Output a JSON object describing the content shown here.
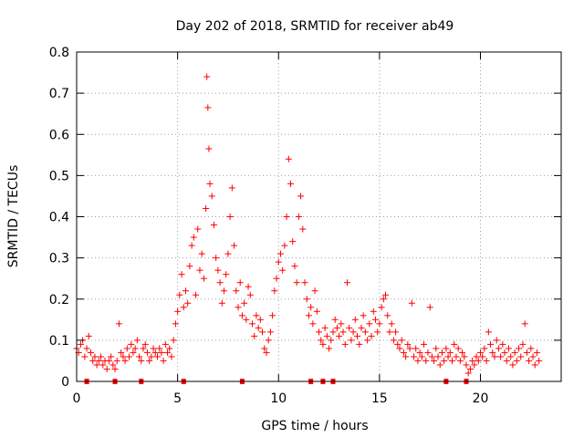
{
  "chart_data": {
    "type": "scatter",
    "title": "Day 202 of 2018, SRMTID for receiver ab49",
    "xlabel": "GPS time / hours",
    "ylabel": "SRMTID / TECUs",
    "xlim": [
      0,
      24
    ],
    "ylim": [
      0,
      0.8
    ],
    "xticks": [
      0,
      5,
      10,
      15,
      20
    ],
    "xtick_labels": [
      "0",
      "5",
      "10",
      "15",
      "20"
    ],
    "yticks": [
      0,
      0.1,
      0.2,
      0.3,
      0.4,
      0.5,
      0.6,
      0.7,
      0.8
    ],
    "ytick_labels": [
      "0",
      "0.1",
      "0.2",
      "0.3",
      "0.4",
      "0.5",
      "0.6",
      "0.7",
      "0.8"
    ],
    "grid": true,
    "marker": "+",
    "color": "#ff0000",
    "series": [
      {
        "name": "SRMTID",
        "points": [
          [
            0.0,
            0.08
          ],
          [
            0.1,
            0.07
          ],
          [
            0.2,
            0.09
          ],
          [
            0.3,
            0.1
          ],
          [
            0.4,
            0.06
          ],
          [
            0.5,
            0.08
          ],
          [
            0.6,
            0.11
          ],
          [
            0.7,
            0.07
          ],
          [
            0.8,
            0.05
          ],
          [
            0.9,
            0.06
          ],
          [
            1.0,
            0.04
          ],
          [
            1.1,
            0.05
          ],
          [
            1.2,
            0.06
          ],
          [
            1.3,
            0.04
          ],
          [
            1.4,
            0.05
          ],
          [
            1.5,
            0.03
          ],
          [
            1.6,
            0.05
          ],
          [
            1.7,
            0.06
          ],
          [
            1.8,
            0.04
          ],
          [
            1.9,
            0.03
          ],
          [
            2.0,
            0.05
          ],
          [
            2.1,
            0.14
          ],
          [
            2.2,
            0.07
          ],
          [
            2.3,
            0.06
          ],
          [
            2.4,
            0.05
          ],
          [
            2.5,
            0.08
          ],
          [
            2.6,
            0.06
          ],
          [
            2.7,
            0.09
          ],
          [
            2.8,
            0.07
          ],
          [
            2.9,
            0.08
          ],
          [
            3.0,
            0.1
          ],
          [
            3.1,
            0.06
          ],
          [
            3.2,
            0.05
          ],
          [
            3.3,
            0.08
          ],
          [
            3.4,
            0.09
          ],
          [
            3.5,
            0.07
          ],
          [
            3.6,
            0.05
          ],
          [
            3.7,
            0.06
          ],
          [
            3.8,
            0.08
          ],
          [
            3.9,
            0.07
          ],
          [
            4.0,
            0.06
          ],
          [
            4.1,
            0.08
          ],
          [
            4.2,
            0.07
          ],
          [
            4.3,
            0.05
          ],
          [
            4.4,
            0.09
          ],
          [
            4.5,
            0.07
          ],
          [
            4.6,
            0.08
          ],
          [
            4.7,
            0.06
          ],
          [
            4.8,
            0.1
          ],
          [
            4.9,
            0.14
          ],
          [
            5.0,
            0.17
          ],
          [
            5.1,
            0.21
          ],
          [
            5.2,
            0.26
          ],
          [
            5.3,
            0.18
          ],
          [
            5.4,
            0.22
          ],
          [
            5.5,
            0.19
          ],
          [
            5.6,
            0.28
          ],
          [
            5.7,
            0.33
          ],
          [
            5.8,
            0.35
          ],
          [
            5.9,
            0.21
          ],
          [
            6.0,
            0.37
          ],
          [
            6.1,
            0.27
          ],
          [
            6.2,
            0.31
          ],
          [
            6.3,
            0.25
          ],
          [
            6.4,
            0.42
          ],
          [
            6.45,
            0.74
          ],
          [
            6.5,
            0.665
          ],
          [
            6.55,
            0.565
          ],
          [
            6.6,
            0.48
          ],
          [
            6.7,
            0.45
          ],
          [
            6.8,
            0.38
          ],
          [
            6.9,
            0.3
          ],
          [
            7.0,
            0.27
          ],
          [
            7.1,
            0.24
          ],
          [
            7.2,
            0.19
          ],
          [
            7.3,
            0.22
          ],
          [
            7.4,
            0.26
          ],
          [
            7.5,
            0.31
          ],
          [
            7.6,
            0.4
          ],
          [
            7.7,
            0.47
          ],
          [
            7.8,
            0.33
          ],
          [
            7.9,
            0.22
          ],
          [
            8.0,
            0.18
          ],
          [
            8.1,
            0.24
          ],
          [
            8.2,
            0.16
          ],
          [
            8.3,
            0.19
          ],
          [
            8.4,
            0.15
          ],
          [
            8.5,
            0.23
          ],
          [
            8.6,
            0.21
          ],
          [
            8.7,
            0.14
          ],
          [
            8.8,
            0.11
          ],
          [
            8.9,
            0.16
          ],
          [
            9.0,
            0.13
          ],
          [
            9.1,
            0.15
          ],
          [
            9.2,
            0.12
          ],
          [
            9.3,
            0.08
          ],
          [
            9.4,
            0.07
          ],
          [
            9.5,
            0.1
          ],
          [
            9.6,
            0.12
          ],
          [
            9.7,
            0.16
          ],
          [
            9.8,
            0.22
          ],
          [
            9.9,
            0.25
          ],
          [
            10.0,
            0.29
          ],
          [
            10.1,
            0.31
          ],
          [
            10.2,
            0.27
          ],
          [
            10.3,
            0.33
          ],
          [
            10.4,
            0.4
          ],
          [
            10.5,
            0.54
          ],
          [
            10.6,
            0.48
          ],
          [
            10.7,
            0.34
          ],
          [
            10.8,
            0.28
          ],
          [
            10.9,
            0.24
          ],
          [
            11.0,
            0.4
          ],
          [
            11.1,
            0.45
          ],
          [
            11.2,
            0.37
          ],
          [
            11.3,
            0.24
          ],
          [
            11.4,
            0.2
          ],
          [
            11.5,
            0.16
          ],
          [
            11.6,
            0.18
          ],
          [
            11.7,
            0.14
          ],
          [
            11.8,
            0.22
          ],
          [
            11.9,
            0.17
          ],
          [
            12.0,
            0.12
          ],
          [
            12.1,
            0.1
          ],
          [
            12.2,
            0.09
          ],
          [
            12.3,
            0.13
          ],
          [
            12.4,
            0.11
          ],
          [
            12.5,
            0.08
          ],
          [
            12.6,
            0.1
          ],
          [
            12.7,
            0.12
          ],
          [
            12.8,
            0.15
          ],
          [
            12.9,
            0.13
          ],
          [
            13.0,
            0.11
          ],
          [
            13.1,
            0.14
          ],
          [
            13.2,
            0.12
          ],
          [
            13.3,
            0.09
          ],
          [
            13.4,
            0.24
          ],
          [
            13.5,
            0.13
          ],
          [
            13.6,
            0.1
          ],
          [
            13.7,
            0.12
          ],
          [
            13.8,
            0.15
          ],
          [
            13.9,
            0.11
          ],
          [
            14.0,
            0.09
          ],
          [
            14.1,
            0.13
          ],
          [
            14.2,
            0.16
          ],
          [
            14.3,
            0.12
          ],
          [
            14.4,
            0.1
          ],
          [
            14.5,
            0.14
          ],
          [
            14.6,
            0.11
          ],
          [
            14.7,
            0.17
          ],
          [
            14.8,
            0.15
          ],
          [
            14.9,
            0.12
          ],
          [
            15.0,
            0.14
          ],
          [
            15.1,
            0.18
          ],
          [
            15.2,
            0.2
          ],
          [
            15.3,
            0.21
          ],
          [
            15.4,
            0.16
          ],
          [
            15.5,
            0.12
          ],
          [
            15.6,
            0.14
          ],
          [
            15.7,
            0.1
          ],
          [
            15.8,
            0.12
          ],
          [
            15.9,
            0.09
          ],
          [
            16.0,
            0.08
          ],
          [
            16.1,
            0.1
          ],
          [
            16.2,
            0.07
          ],
          [
            16.3,
            0.06
          ],
          [
            16.4,
            0.09
          ],
          [
            16.5,
            0.08
          ],
          [
            16.6,
            0.19
          ],
          [
            16.7,
            0.06
          ],
          [
            16.8,
            0.08
          ],
          [
            16.9,
            0.05
          ],
          [
            17.0,
            0.07
          ],
          [
            17.1,
            0.06
          ],
          [
            17.2,
            0.09
          ],
          [
            17.3,
            0.05
          ],
          [
            17.4,
            0.07
          ],
          [
            17.5,
            0.18
          ],
          [
            17.6,
            0.06
          ],
          [
            17.7,
            0.05
          ],
          [
            17.8,
            0.08
          ],
          [
            17.9,
            0.06
          ],
          [
            18.0,
            0.04
          ],
          [
            18.1,
            0.07
          ],
          [
            18.2,
            0.05
          ],
          [
            18.3,
            0.08
          ],
          [
            18.4,
            0.06
          ],
          [
            18.5,
            0.07
          ],
          [
            18.6,
            0.05
          ],
          [
            18.7,
            0.09
          ],
          [
            18.8,
            0.06
          ],
          [
            18.9,
            0.08
          ],
          [
            19.0,
            0.05
          ],
          [
            19.1,
            0.07
          ],
          [
            19.2,
            0.06
          ],
          [
            19.3,
            0.04
          ],
          [
            19.4,
            0.02
          ],
          [
            19.5,
            0.03
          ],
          [
            19.6,
            0.05
          ],
          [
            19.7,
            0.04
          ],
          [
            19.8,
            0.06
          ],
          [
            19.9,
            0.05
          ],
          [
            20.0,
            0.07
          ],
          [
            20.1,
            0.06
          ],
          [
            20.2,
            0.08
          ],
          [
            20.3,
            0.05
          ],
          [
            20.4,
            0.12
          ],
          [
            20.5,
            0.09
          ],
          [
            20.6,
            0.07
          ],
          [
            20.7,
            0.06
          ],
          [
            20.8,
            0.1
          ],
          [
            20.9,
            0.08
          ],
          [
            21.0,
            0.06
          ],
          [
            21.1,
            0.09
          ],
          [
            21.2,
            0.07
          ],
          [
            21.3,
            0.05
          ],
          [
            21.4,
            0.08
          ],
          [
            21.5,
            0.06
          ],
          [
            21.6,
            0.04
          ],
          [
            21.7,
            0.07
          ],
          [
            21.8,
            0.05
          ],
          [
            21.9,
            0.08
          ],
          [
            22.0,
            0.06
          ],
          [
            22.1,
            0.09
          ],
          [
            22.2,
            0.14
          ],
          [
            22.3,
            0.07
          ],
          [
            22.4,
            0.05
          ],
          [
            22.5,
            0.08
          ],
          [
            22.6,
            0.06
          ],
          [
            22.7,
            0.04
          ],
          [
            22.8,
            0.07
          ],
          [
            22.9,
            0.05
          ]
        ]
      }
    ],
    "baseline_flags_x": [
      0.5,
      1.9,
      3.2,
      5.3,
      8.2,
      11.6,
      12.2,
      12.7,
      18.3,
      19.3
    ]
  }
}
